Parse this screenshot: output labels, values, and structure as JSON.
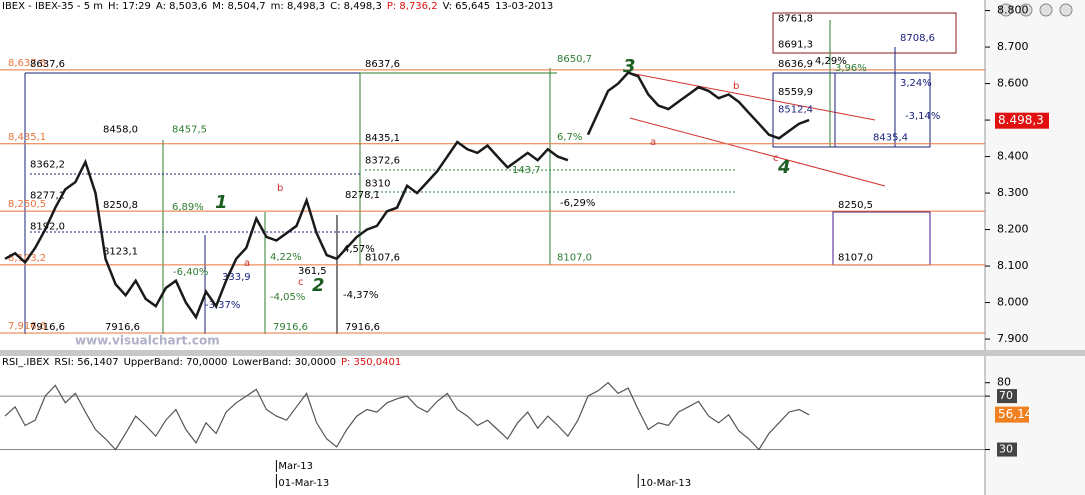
{
  "chart_data": [
    {
      "type": "line",
      "header": {
        "title": "IBEX - IBEX-35 - 5 m",
        "fields": [
          "H: 17:29",
          "A: 8,503,6",
          "M: 8,504,7",
          "m: 8,498,3",
          "C: 8,498,3",
          "P: 8,736,2",
          "V: 65,645",
          "13-03-2013"
        ]
      },
      "series": [
        {
          "color": "#1a1a1a",
          "values": [
            8120,
            8135,
            8110,
            8150,
            8200,
            8260,
            8310,
            8330,
            8385,
            8300,
            8120,
            8050,
            8020,
            8060,
            8010,
            7990,
            8040,
            8060,
            8000,
            7960,
            8030,
            7990,
            8060,
            8120,
            8150,
            8230,
            8180,
            8170,
            8190,
            8210,
            8280,
            8190,
            8130,
            8120,
            8150,
            8180,
            8200,
            8210,
            8250,
            8260,
            8320,
            8300,
            8330,
            8360,
            8400,
            8440,
            8420,
            8410,
            8430,
            8400,
            8370,
            8390,
            8410,
            8390,
            8420,
            8400,
            8390,
            null,
            8460,
            8520,
            8580,
            8600,
            8630,
            8620,
            8570,
            8540,
            8530,
            8550,
            8570,
            8590,
            8580,
            8560,
            8570,
            8550,
            8520,
            8490,
            8460,
            8450,
            8470,
            8490,
            8500
          ]
        }
      ],
      "xlim": [
        -0.5,
        97.5
      ],
      "xticks": [
        {
          "value": 27,
          "label": "01-Mar-13"
        },
        {
          "value": 63,
          "label": "10-Mar-13"
        }
      ],
      "month_tick": {
        "value": 27,
        "label": "Mar-13"
      },
      "ylim": [
        7870,
        8829
      ],
      "yticks": [
        {
          "value": 7900,
          "label": "7.900"
        },
        {
          "value": 8000,
          "label": "8.000"
        },
        {
          "value": 8100,
          "label": "8.100"
        },
        {
          "value": 8200,
          "label": "8.200"
        },
        {
          "value": 8300,
          "label": "8.300"
        },
        {
          "value": 8400,
          "label": "8.400"
        },
        {
          "value": 8500,
          "label": "8.500"
        },
        {
          "value": 8600,
          "label": "8.600"
        },
        {
          "value": 8700,
          "label": "8.700"
        },
        {
          "value": 8800,
          "label": "8.800"
        }
      ],
      "last_price": {
        "value": 8498.3,
        "label": "8.498,3"
      },
      "levels": [
        {
          "value": 8637.6,
          "label": "8,637,6"
        },
        {
          "value": 8435.1,
          "label": "8,435,1"
        },
        {
          "value": 8250.5,
          "label": "8,250,5"
        },
        {
          "value": 8103.2,
          "label": "8,103,2"
        },
        {
          "value": 7916.6,
          "label": "7,916,6"
        }
      ],
      "level_color": "#e8743b",
      "price_labels": [
        {
          "value": 8637.6,
          "label": "8637,6"
        },
        {
          "value": 8637.6,
          "label": "8637,6"
        },
        {
          "value": 8458.0,
          "label": "8458,0"
        },
        {
          "value": 8457.5,
          "label": "8457,5"
        },
        {
          "value": 8362.2,
          "label": "8362,2"
        },
        {
          "value": 8277.1,
          "label": "8277,1"
        },
        {
          "value": 8250.8,
          "label": "8250,8"
        },
        {
          "value": 8192.0,
          "label": "8192,0"
        },
        {
          "value": 8123.1,
          "label": "8123,1"
        },
        {
          "value": 8435.1,
          "label": "8435,1"
        },
        {
          "value": 8372.6,
          "label": "8372,6"
        },
        {
          "value": 8310,
          "label": "8310"
        },
        {
          "value": 8278.1,
          "label": "8278,1"
        },
        {
          "value": 8107.6,
          "label": "8107,6"
        },
        {
          "value": 8650.7,
          "label": "8650,7"
        },
        {
          "value": 8107.0,
          "label": "8107,0"
        },
        {
          "value": 8636.9,
          "label": "8636,9"
        },
        {
          "value": 8559.9,
          "label": "8559,9"
        },
        {
          "value": 8512.4,
          "label": "8512,4"
        },
        {
          "value": 8435.4,
          "label": "8435,4"
        },
        {
          "value": 8761.8,
          "label": "8761,8"
        },
        {
          "value": 8691.3,
          "label": "8691,3"
        },
        {
          "value": 8708.6,
          "label": "8708,6"
        },
        {
          "value": 8250.5,
          "label": "8250,5"
        },
        {
          "value": 8107.0,
          "label": "8107,0"
        },
        {
          "value": 7916.6,
          "label": "7916,6"
        },
        {
          "value": 7916.6,
          "label": "7916,6"
        },
        {
          "value": 7916.6,
          "label": "7916,6"
        },
        {
          "value": 7916.6,
          "label": "7916,6"
        }
      ],
      "percent_labels": [
        "6,89%",
        "-6,40%",
        "-3,37%",
        "4,22%",
        "-4,05%",
        "4,57%",
        "-4,37%",
        "-6,29%",
        "6,7%",
        "4,29%",
        "3,96%",
        "3,24%",
        "-3,14%",
        "361,5",
        "333,9",
        "143,7"
      ],
      "wave_labels": [
        "1",
        "2",
        "3",
        "4"
      ],
      "subwave_labels": [
        "a",
        "b",
        "c",
        "a",
        "b",
        "c"
      ],
      "watermark": "www.visualchart.com"
    },
    {
      "type": "line",
      "header": {
        "title": "RSI_.IBEX",
        "fields": [
          "RSI: 56,1407",
          "UpperBand: 70,0000",
          "LowerBand: 30,0000",
          "P: 350,0401"
        ]
      },
      "series": [
        {
          "color": "#555555",
          "values": [
            55,
            62,
            48,
            52,
            70,
            78,
            65,
            72,
            58,
            45,
            38,
            30,
            42,
            55,
            48,
            40,
            52,
            60,
            45,
            35,
            50,
            42,
            58,
            65,
            70,
            75,
            60,
            55,
            52,
            62,
            72,
            50,
            38,
            32,
            45,
            55,
            60,
            58,
            65,
            68,
            70,
            62,
            58,
            66,
            72,
            60,
            55,
            48,
            52,
            45,
            38,
            50,
            58,
            46,
            55,
            48,
            40,
            52,
            70,
            74,
            80,
            72,
            76,
            60,
            45,
            50,
            48,
            58,
            62,
            66,
            55,
            50,
            56,
            44,
            38,
            30,
            42,
            50,
            58,
            60,
            56
          ]
        }
      ],
      "ylim": [
        -4,
        100
      ],
      "yticks": [
        80,
        70,
        30
      ],
      "bands": [
        70,
        30
      ],
      "last_value": {
        "value": 56.14,
        "label": "56,14"
      }
    }
  ]
}
